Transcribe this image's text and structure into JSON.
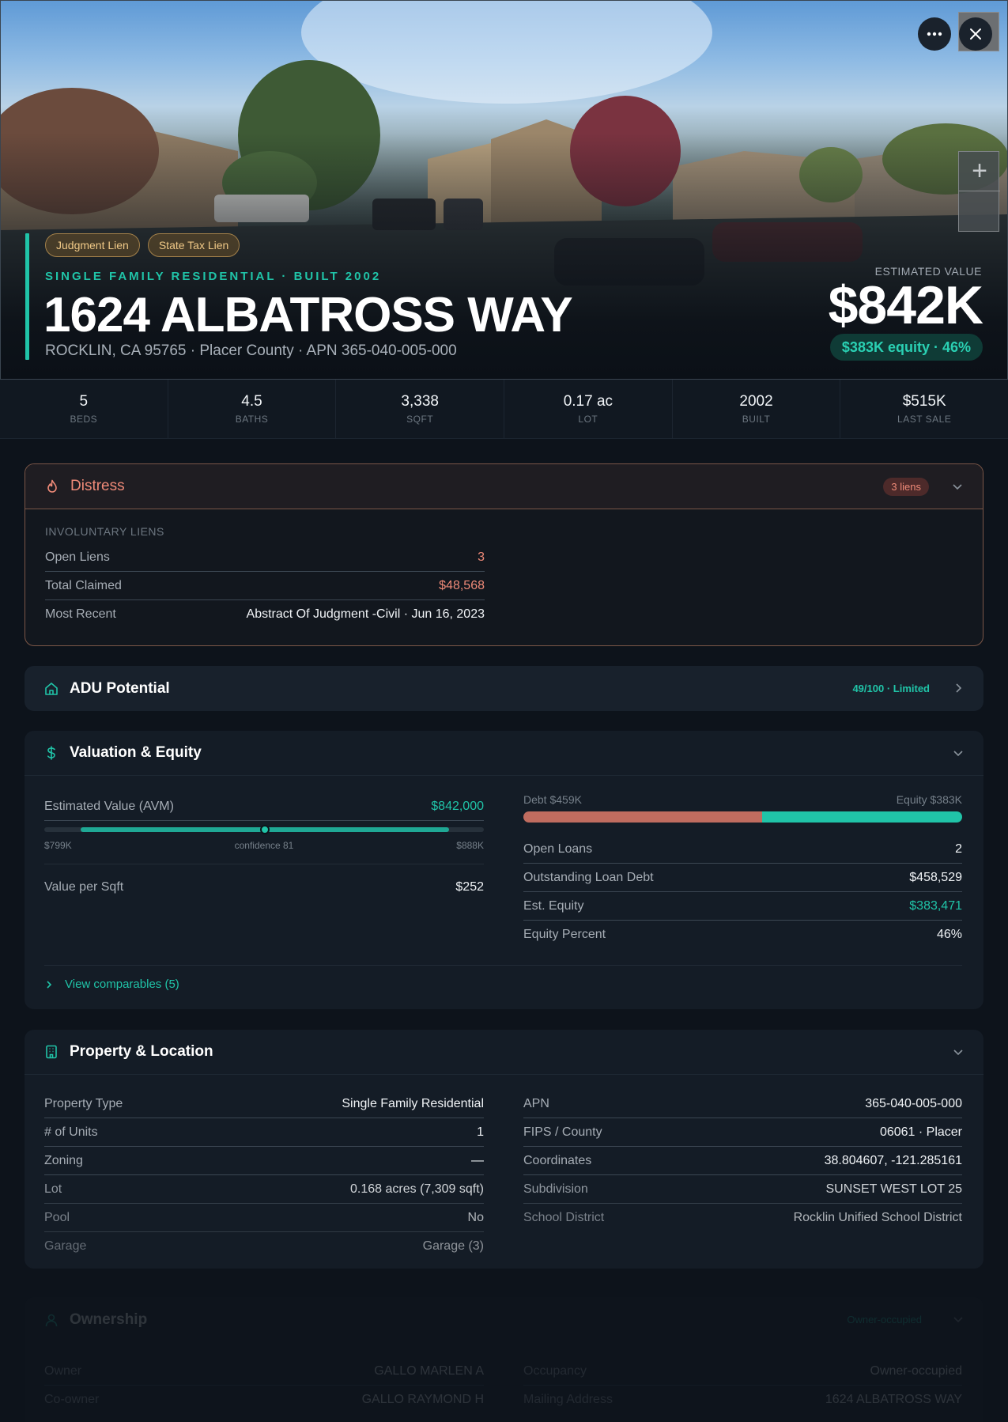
{
  "hero": {
    "badges": [
      "Judgment Lien",
      "State Tax Lien"
    ],
    "subtype": "SINGLE FAMILY RESIDENTIAL · BUILT 2002",
    "address": "1624 ALBATROSS WAY",
    "location": "ROCKLIN, CA 95765 · Placer County · APN 365-040-005-000",
    "estimated_value_label": "ESTIMATED VALUE",
    "estimated_value": "$842K",
    "equity_pill": "$383K equity · 46%",
    "zoom_in_label": "+"
  },
  "stats": [
    {
      "value": "5",
      "label": "BEDS"
    },
    {
      "value": "4.5",
      "label": "BATHS"
    },
    {
      "value": "3,338",
      "label": "SQFT"
    },
    {
      "value": "0.17 ac",
      "label": "LOT"
    },
    {
      "value": "2002",
      "label": "BUILT"
    },
    {
      "value": "$515K",
      "label": "LAST SALE"
    }
  ],
  "distress": {
    "title": "Distress",
    "pill": "3 liens",
    "caption": "INVOLUNTARY LIENS",
    "rows": [
      {
        "k": "Open Liens",
        "v": "3"
      },
      {
        "k": "Total Claimed",
        "v": "$48,568"
      },
      {
        "k": "Most Recent",
        "v": "Abstract Of Judgment -Civil · Jun 16, 2023"
      }
    ]
  },
  "adu": {
    "title": "ADU Potential",
    "pill": "49/100 · Limited"
  },
  "valuation": {
    "title": "Valuation & Equity",
    "avm_label": "Estimated Value (AVM)",
    "avm_value": "$842,000",
    "avm_low": "$799K",
    "avm_confidence": "confidence 81",
    "avm_high": "$888K",
    "value_per_sqft_label": "Value per Sqft",
    "value_per_sqft": "$252",
    "debt_label": "Debt $459K",
    "equity_label": "Equity $383K",
    "debt_fraction": 0.545,
    "rows": [
      {
        "k": "Open Loans",
        "v": "2"
      },
      {
        "k": "Outstanding Loan Debt",
        "v": "$458,529"
      },
      {
        "k": "Est. Equity",
        "v": "$383,471"
      },
      {
        "k": "Equity Percent",
        "v": "46%"
      }
    ],
    "view_comparables": "View comparables (5)"
  },
  "property": {
    "title": "Property & Location",
    "left": [
      {
        "k": "Property Type",
        "v": "Single Family Residential"
      },
      {
        "k": "# of Units",
        "v": "1"
      },
      {
        "k": "Zoning",
        "v": "—"
      },
      {
        "k": "Lot",
        "v": "0.168 acres (7,309 sqft)"
      },
      {
        "k": "Pool",
        "v": "No"
      },
      {
        "k": "Garage",
        "v": "Garage (3)"
      }
    ],
    "right": [
      {
        "k": "APN",
        "v": "365-040-005-000"
      },
      {
        "k": "FIPS / County",
        "v": "06061 · Placer"
      },
      {
        "k": "Coordinates",
        "v": "38.804607, -121.285161"
      },
      {
        "k": "Subdivision",
        "v": "SUNSET WEST LOT 25"
      },
      {
        "k": "School District",
        "v": "Rocklin Unified School District"
      }
    ]
  },
  "ownership": {
    "title": "Ownership",
    "pill": "Owner-occupied",
    "left": [
      {
        "k": "Owner",
        "v": "GALLO MARLEN A"
      },
      {
        "k": "Co-owner",
        "v": "GALLO RAYMOND H"
      }
    ],
    "right": [
      {
        "k": "Occupancy",
        "v": "Owner-occupied"
      },
      {
        "k": "Mailing Address",
        "v": "1624 ALBATROSS WAY"
      }
    ]
  },
  "colors": {
    "accent": "#20c4a8",
    "danger": "#ef8a78",
    "badge": "#f0c987",
    "background": "#0d131b"
  },
  "icons": [
    "more-icon",
    "close-icon",
    "flame-icon",
    "home-icon",
    "dollar-icon",
    "building-icon",
    "user-icon",
    "chevron-down-icon",
    "chevron-right-icon"
  ]
}
